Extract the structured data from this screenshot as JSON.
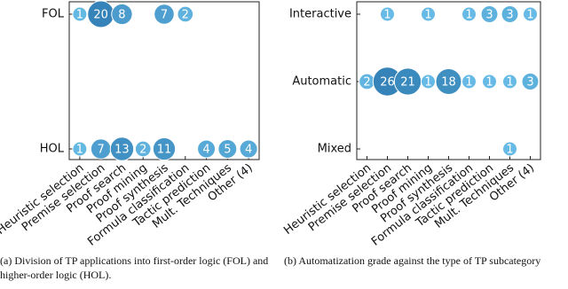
{
  "chart_data": [
    {
      "type": "bubble",
      "caption": "(a) Division of TP applications into first-order logic (FOL) and higher-order logic (HOL).",
      "categories": [
        "Heuristic selection",
        "Premise selection",
        "Proof search",
        "Proof mining",
        "Proof synthesis",
        "Formula classification",
        "Tactic prediction",
        "Mult. Techniques",
        "Other (4)"
      ],
      "colors": [
        "#72c8f0",
        "#3583b8"
      ],
      "series": [
        {
          "name": "FOL",
          "values": [
            1,
            20,
            8,
            null,
            7,
            2,
            null,
            null,
            null
          ]
        },
        {
          "name": "HOL",
          "values": [
            1,
            7,
            13,
            2,
            11,
            null,
            4,
            5,
            4
          ]
        }
      ]
    },
    {
      "type": "bubble",
      "caption": "(b) Automatization grade against the type of TP subcategory",
      "categories": [
        "Heuristic selection",
        "Premise selection",
        "Proof search",
        "Proof mining",
        "Proof synthesis",
        "Formula classification",
        "Tactic prediction",
        "Mult. Techniques",
        "Other (4)"
      ],
      "colors": [
        "#72c8f0",
        "#3583b8"
      ],
      "series": [
        {
          "name": "Interactive",
          "values": [
            null,
            1,
            null,
            1,
            null,
            1,
            3,
            3,
            1
          ]
        },
        {
          "name": "Automatic",
          "values": [
            2,
            26,
            21,
            1,
            18,
            1,
            1,
            1,
            3
          ]
        },
        {
          "name": "Mixed",
          "values": [
            null,
            null,
            null,
            null,
            null,
            null,
            null,
            1,
            null
          ]
        }
      ]
    }
  ]
}
